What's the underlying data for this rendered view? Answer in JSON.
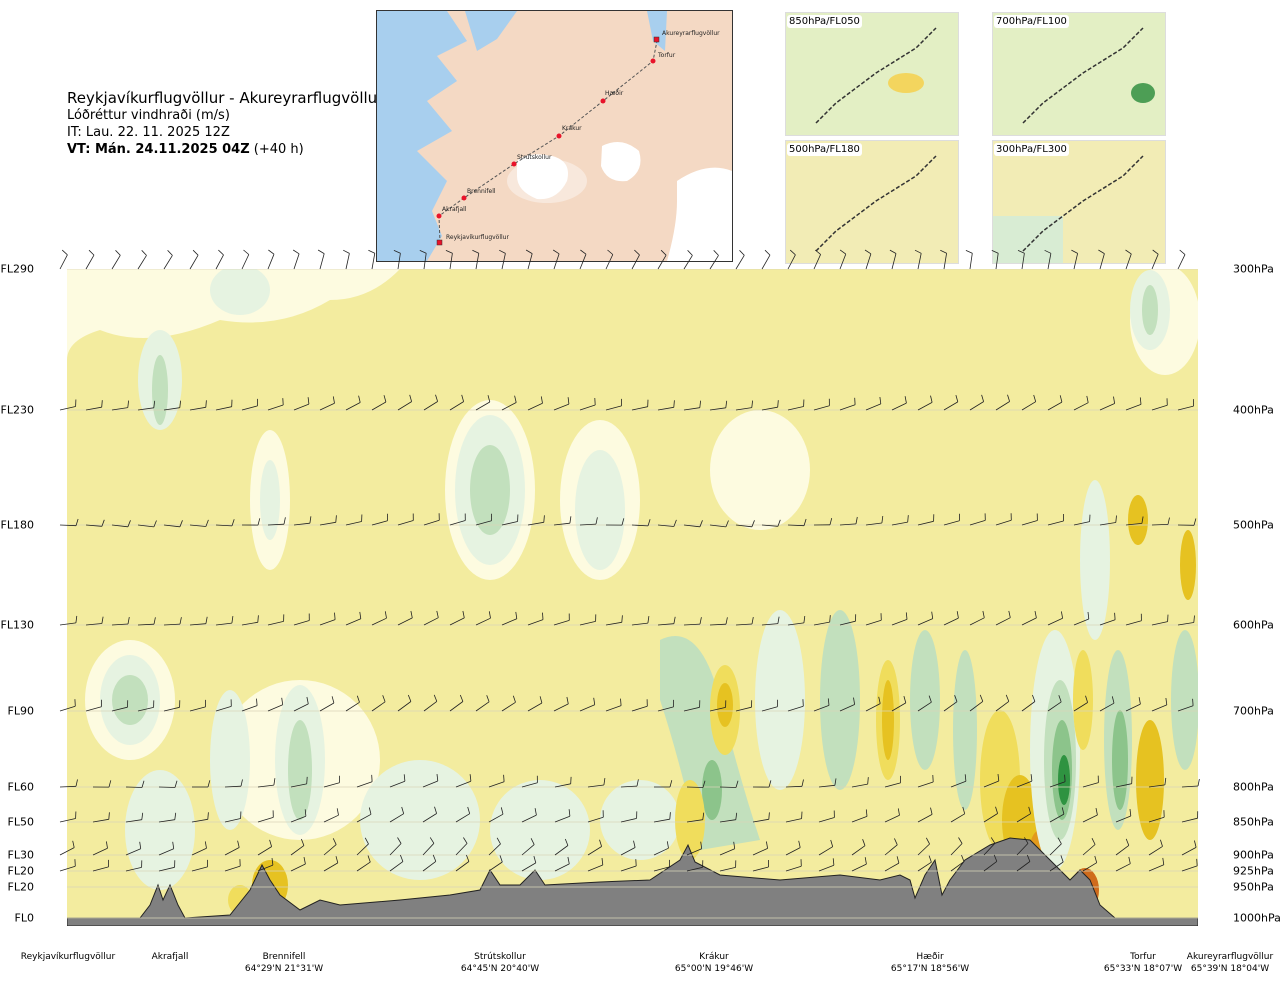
{
  "header": {
    "route": "Reykjavíkurflugvöllur - Akureyrarflugvöllur",
    "variable": "Lóðréttur vindhraði (m/s)",
    "issue_time": "IT: Lau. 22. 11. 2025 12Z",
    "valid_time_bold": "VT: Mán. 24.11.2025 04Z",
    "valid_time_offset": " (+40 h)"
  },
  "map": {
    "waypoints": [
      {
        "name": "Akureyrarflugvöllur",
        "type": "airport"
      },
      {
        "name": "Torfur",
        "type": "point"
      },
      {
        "name": "Hæðir",
        "type": "point"
      },
      {
        "name": "Krákur",
        "type": "point"
      },
      {
        "name": "Strútskollur",
        "type": "point"
      },
      {
        "name": "Brennifell",
        "type": "point"
      },
      {
        "name": "Akrafjall",
        "type": "point"
      },
      {
        "name": "Reykjavíkurflugvöllur",
        "type": "airport"
      }
    ],
    "colors": {
      "land": "#f4d9c4",
      "sea": "#a8cfee",
      "route": "#555555",
      "waypoint": "#e8132a",
      "glacier": "#ffffff"
    }
  },
  "insets": [
    {
      "label": "850hPa/FL050"
    },
    {
      "label": "700hPa/FL100"
    },
    {
      "label": "500hPa/FL180"
    },
    {
      "label": "300hPa/FL300"
    }
  ],
  "chart_data": {
    "type": "heatmap",
    "description_of_field": "vertical cross-section of vertical wind speed along the route",
    "left_axis_flight_levels": [
      "FL290",
      "FL230",
      "FL180",
      "FL130",
      "FL90",
      "FL60",
      "FL50",
      "FL30",
      "FL20",
      "FL20",
      "FL0"
    ],
    "right_axis_pressure": [
      "300hPa",
      "400hPa",
      "500hPa",
      "600hPa",
      "700hPa",
      "800hPa",
      "850hPa",
      "900hPa",
      "925hPa",
      "950hPa",
      "1000hPa"
    ],
    "x_locations": [
      {
        "name": "Reykjavíkurflugvöllur",
        "coords": ""
      },
      {
        "name": "Akrafjall",
        "coords": ""
      },
      {
        "name": "Brennifell",
        "coords": "64°29'N 21°31'W"
      },
      {
        "name": "Strútskollur",
        "coords": "64°45'N 20°40'W"
      },
      {
        "name": "Krákur",
        "coords": "65°00'N 19°46'W"
      },
      {
        "name": "Hæðir",
        "coords": "65°17'N 18°56'W"
      },
      {
        "name": "Torfur",
        "coords": "65°33'N 18°07'W"
      },
      {
        "name": "Akureyrarflugvöllur",
        "coords": "65°39'N 18°04'W"
      }
    ],
    "colors": {
      "background": "#f3ec9f",
      "weak_up": "#fdfbe0",
      "up_light": "#e6f3e1",
      "up_mid": "#c2e0bd",
      "up_strong": "#8cc48b",
      "up_max": "#2f9341",
      "down_light": "#f0dd5c",
      "down_mid": "#e6c221",
      "down_strong": "#e29a1c",
      "down_max": "#cf6b1c",
      "terrain": "#808080",
      "gridline": "#d8d4b8"
    },
    "grid": true,
    "legend": "none"
  }
}
